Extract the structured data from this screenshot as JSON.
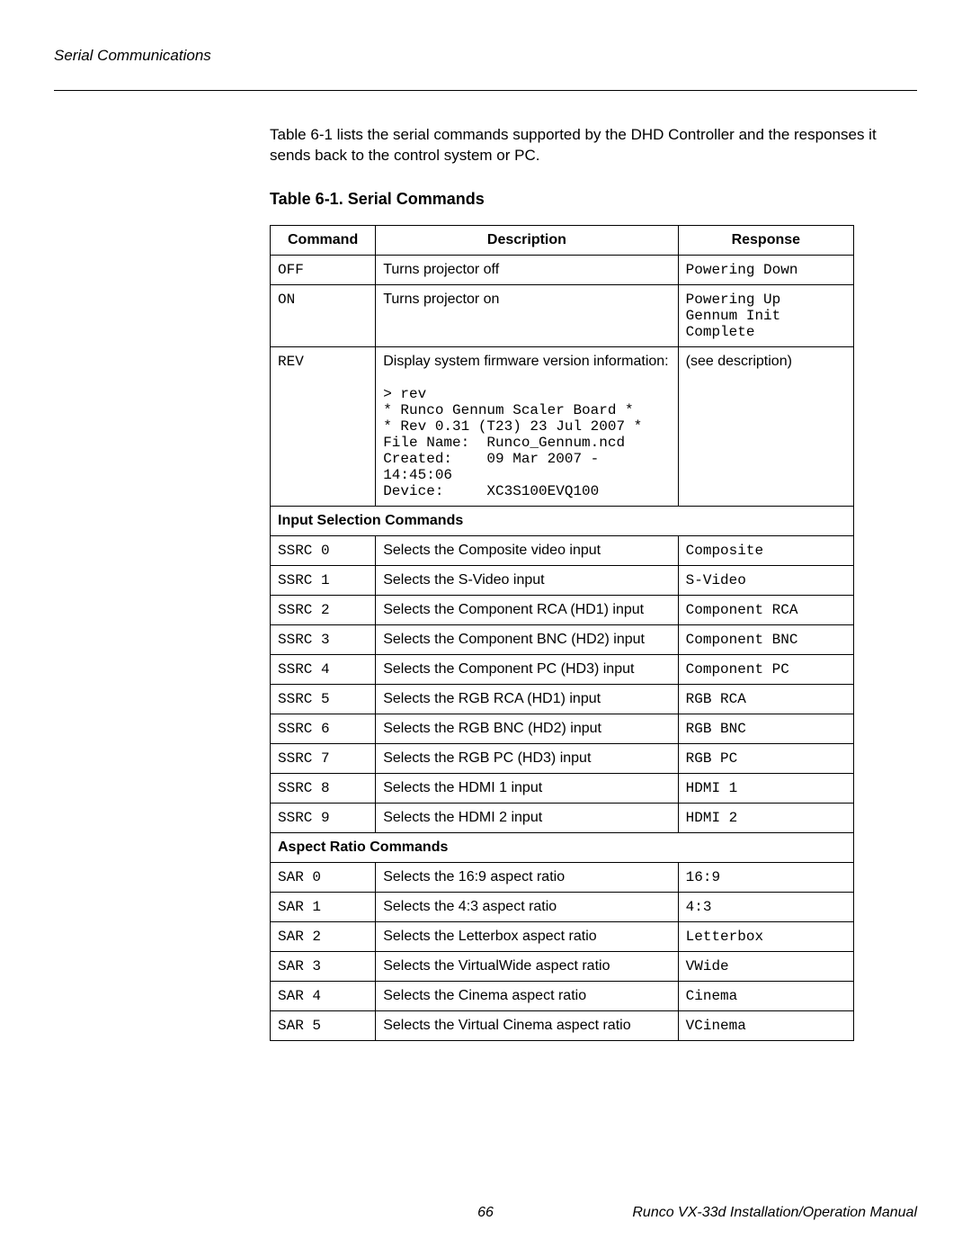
{
  "header": {
    "section_title": "Serial Communications"
  },
  "intro": "Table 6-1 lists the serial commands supported by the DHD Controller and the responses it sends back to the control system or PC.",
  "table": {
    "caption": "Table 6-1. Serial Commands",
    "columns": [
      "Command",
      "Description",
      "Response"
    ],
    "groups": [
      {
        "section": null,
        "rows": [
          {
            "cmd": "OFF",
            "desc": "Turns projector off",
            "resp": "Powering Down",
            "mono_resp": true
          },
          {
            "cmd": "ON",
            "desc": "Turns projector on",
            "resp": "Powering Up\nGennum Init\nComplete",
            "mono_resp": true
          },
          {
            "cmd": "REV",
            "desc_plain": "Display system firmware version information:",
            "desc_mono": "> rev\n* Runco Gennum Scaler Board *\n* Rev 0.31 (T23) 23 Jul 2007 *\nFile Name:  Runco_Gennum.ncd\nCreated:    09 Mar 2007 -\n14:45:06\nDevice:     XC3S100EVQ100",
            "resp": "(see description)",
            "mono_resp": false
          }
        ]
      },
      {
        "section": "Input Selection Commands",
        "rows": [
          {
            "cmd": "SSRC 0",
            "desc": "Selects the Composite video input",
            "resp": "Composite",
            "mono_resp": true
          },
          {
            "cmd": "SSRC 1",
            "desc": "Selects the S-Video input",
            "resp": "S-Video",
            "mono_resp": true
          },
          {
            "cmd": "SSRC 2",
            "desc": "Selects the Component RCA (HD1) input",
            "resp": "Component RCA",
            "mono_resp": true
          },
          {
            "cmd": "SSRC 3",
            "desc": "Selects the Component BNC (HD2) input",
            "resp": "Component BNC",
            "mono_resp": true
          },
          {
            "cmd": "SSRC 4",
            "desc": "Selects the Component PC (HD3) input",
            "resp": "Component PC",
            "mono_resp": true
          },
          {
            "cmd": "SSRC 5",
            "desc": "Selects the RGB RCA (HD1) input",
            "resp": "RGB RCA",
            "mono_resp": true
          },
          {
            "cmd": "SSRC 6",
            "desc": "Selects the RGB BNC (HD2) input",
            "resp": "RGB BNC",
            "mono_resp": true
          },
          {
            "cmd": "SSRC 7",
            "desc": "Selects the RGB PC (HD3) input",
            "resp": "RGB PC",
            "mono_resp": true
          },
          {
            "cmd": "SSRC 8",
            "desc": "Selects the HDMI 1 input",
            "resp": "HDMI 1",
            "mono_resp": true
          },
          {
            "cmd": "SSRC 9",
            "desc": "Selects the HDMI 2 input",
            "resp": "HDMI 2",
            "mono_resp": true
          }
        ]
      },
      {
        "section": "Aspect Ratio Commands",
        "rows": [
          {
            "cmd": "SAR 0",
            "desc": "Selects the 16:9 aspect ratio",
            "resp": "16:9",
            "mono_resp": true
          },
          {
            "cmd": "SAR 1",
            "desc": "Selects the 4:3 aspect ratio",
            "resp": "4:3",
            "mono_resp": true
          },
          {
            "cmd": "SAR 2",
            "desc": "Selects the Letterbox aspect ratio",
            "resp": "Letterbox",
            "mono_resp": true
          },
          {
            "cmd": "SAR 3",
            "desc": "Selects the VirtualWide aspect ratio",
            "resp": "VWide",
            "mono_resp": true
          },
          {
            "cmd": "SAR 4",
            "desc": "Selects the Cinema aspect ratio",
            "resp": "Cinema",
            "mono_resp": true
          },
          {
            "cmd": "SAR 5",
            "desc": "Selects the Virtual Cinema aspect ratio",
            "resp": "VCinema",
            "mono_resp": true
          }
        ]
      }
    ]
  },
  "footer": {
    "page_number": "66",
    "manual_title": "Runco VX-33d Installation/Operation Manual"
  }
}
